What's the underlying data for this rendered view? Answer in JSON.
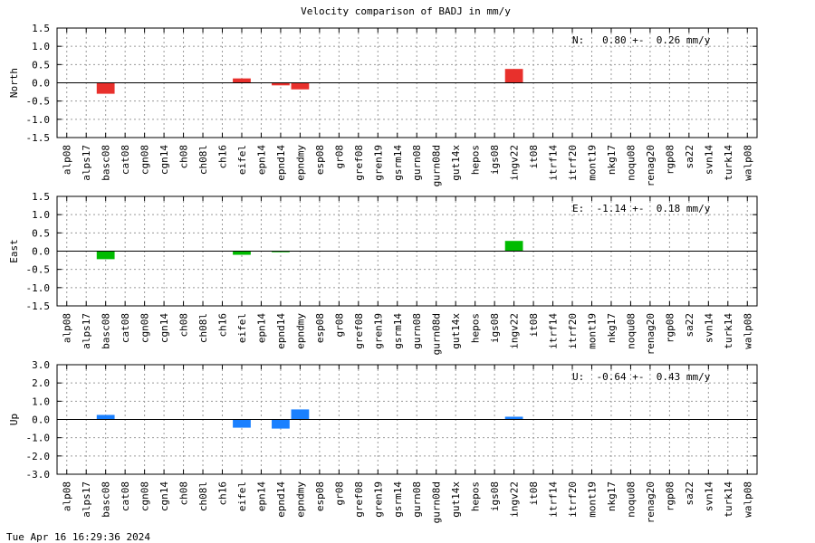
{
  "chart_data": {
    "type": "bar",
    "title": "Velocity comparison of BADJ in mm/y",
    "timestamp": "Tue Apr 16 16:29:36 2024",
    "categories": [
      "alp08",
      "alps17",
      "basc08",
      "cat08",
      "cgn08",
      "cgn14",
      "ch08",
      "ch08l",
      "ch16",
      "eifel",
      "epn14",
      "epnd14",
      "epndmy",
      "esp08",
      "gr08",
      "gref08",
      "gren19",
      "gsrm14",
      "gurn08",
      "gurn08d",
      "gut14x",
      "hepos",
      "igs08",
      "ingv22",
      "it08",
      "itrf14",
      "itrf20",
      "mont19",
      "nkg17",
      "noqu08",
      "renag20",
      "rgp08",
      "sa22",
      "svn14",
      "turk14",
      "walp08"
    ],
    "grid": true,
    "panels": [
      {
        "ylabel": "North",
        "annotation": "N:   0.80 +-  0.26 mm/y",
        "color": "#e8302c",
        "ylim": [
          -1.5,
          1.5
        ],
        "yticks": [
          "1.5",
          "1.0",
          "0.5",
          "0.0",
          "-0.5",
          "-1.0",
          "-1.5"
        ],
        "values": [
          null,
          null,
          -0.3,
          null,
          null,
          null,
          null,
          null,
          null,
          0.12,
          null,
          -0.07,
          -0.18,
          null,
          null,
          null,
          null,
          null,
          null,
          null,
          null,
          null,
          null,
          0.38,
          null,
          null,
          null,
          null,
          null,
          null,
          null,
          null,
          null,
          null,
          null,
          null
        ]
      },
      {
        "ylabel": "East",
        "annotation": "E:  -1.14 +-  0.18 mm/y",
        "color": "#00bb00",
        "ylim": [
          -1.5,
          1.5
        ],
        "yticks": [
          "1.5",
          "1.0",
          "0.5",
          "0.0",
          "-0.5",
          "-1.0",
          "-1.5"
        ],
        "values": [
          null,
          null,
          -0.22,
          null,
          null,
          null,
          null,
          null,
          null,
          -0.1,
          null,
          -0.03,
          null,
          null,
          null,
          null,
          null,
          null,
          null,
          null,
          null,
          null,
          null,
          0.28,
          null,
          null,
          null,
          null,
          null,
          null,
          null,
          null,
          null,
          null,
          null,
          null
        ]
      },
      {
        "ylabel": "Up",
        "annotation": "U:  -0.64 +-  0.43 mm/y",
        "color": "#1a80ff",
        "ylim": [
          -3.0,
          3.0
        ],
        "yticks": [
          "3.0",
          "2.0",
          "1.0",
          "0.0",
          "-1.0",
          "-2.0",
          "-3.0"
        ],
        "values": [
          null,
          null,
          0.25,
          null,
          null,
          null,
          null,
          null,
          null,
          -0.45,
          null,
          -0.5,
          0.55,
          null,
          null,
          null,
          null,
          null,
          null,
          null,
          null,
          null,
          null,
          0.15,
          null,
          null,
          null,
          null,
          null,
          null,
          null,
          null,
          null,
          null,
          null,
          null
        ]
      }
    ]
  }
}
